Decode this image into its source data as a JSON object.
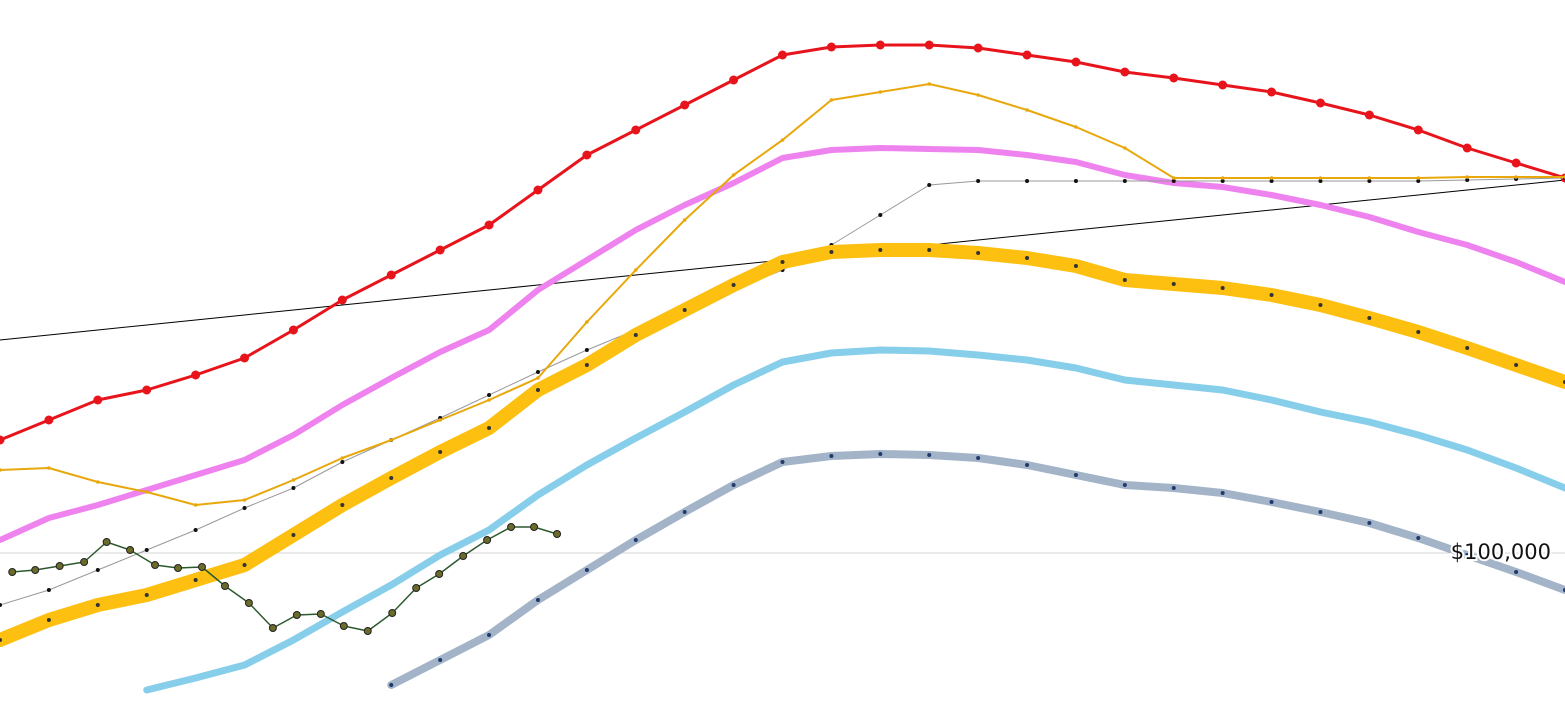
{
  "chart_data": {
    "type": "line",
    "x": [
      0,
      1,
      2,
      3,
      4,
      5,
      6,
      7,
      8,
      9,
      10,
      11,
      12,
      13,
      14,
      15,
      16,
      17,
      18,
      19,
      20,
      21,
      22,
      23,
      24,
      25,
      26,
      27,
      28,
      29,
      30,
      31,
      32
    ],
    "xlim": [
      0,
      32
    ],
    "ylim": [
      70200,
      210600
    ],
    "yticks": [
      {
        "value": 100000,
        "label": "$100,000"
      }
    ],
    "grid": true,
    "series": [
      {
        "color": "#000000",
        "width": 1,
        "marker": "none",
        "values": [
          142600,
          143600,
          144600,
          145600,
          146600,
          147600,
          148600,
          149600,
          150600,
          151600,
          152600,
          153600,
          154600,
          155600,
          156600,
          157600,
          158600,
          159600,
          160600,
          161600,
          162600,
          163600,
          164600,
          165600,
          166600,
          167600,
          168600,
          169600,
          170600,
          171600,
          172600,
          173600,
          174600
        ]
      },
      {
        "color": "#e8141c",
        "width": 3,
        "marker": "circle",
        "values": [
          122600,
          126600,
          130600,
          132600,
          135600,
          139000,
          144600,
          150600,
          155600,
          160600,
          165600,
          172600,
          179600,
          184600,
          189600,
          194600,
          199600,
          201200,
          201600,
          201600,
          201000,
          199600,
          198200,
          196200,
          195000,
          193600,
          192200,
          190000,
          187600,
          184600,
          181000,
          178000,
          175000
        ]
      },
      {
        "color": "#ee82ee",
        "width": 6,
        "marker": "none",
        "values": [
          102600,
          107000,
          109600,
          112600,
          115600,
          118600,
          123600,
          129600,
          135000,
          140200,
          144600,
          152600,
          158600,
          164600,
          169600,
          174000,
          179000,
          180600,
          181000,
          180800,
          180600,
          179600,
          178200,
          175600,
          174000,
          173200,
          171600,
          169600,
          167200,
          164200,
          161600,
          158200,
          154200
        ]
      },
      {
        "color": "#999999",
        "width": 1,
        "marker": "dot",
        "values": [
          89600,
          92600,
          96600,
          100600,
          104600,
          109000,
          113000,
          118200,
          122600,
          127000,
          131600,
          136200,
          140600,
          144600,
          148600,
          152600,
          156600,
          161600,
          167600,
          173600,
          174400,
          174400,
          174400,
          174400,
          174400,
          174400,
          174400,
          174400,
          174400,
          174400,
          174600,
          174800,
          175000
        ]
      },
      {
        "color": "#fdbf10",
        "width": 14,
        "marker": "dot",
        "values": [
          82600,
          86600,
          89600,
          91600,
          94600,
          97600,
          103600,
          109600,
          115000,
          120200,
          125000,
          132600,
          137600,
          143600,
          148600,
          153600,
          158200,
          160200,
          160600,
          160600,
          160000,
          159000,
          157400,
          154600,
          153800,
          153000,
          151600,
          149600,
          147000,
          144200,
          141000,
          137600,
          134200
        ]
      },
      {
        "color": "#87ceeb",
        "width": 7,
        "marker": "none",
        "values": [
          null,
          null,
          null,
          72600,
          75000,
          77600,
          82600,
          88200,
          93600,
          99600,
          104600,
          111600,
          117600,
          123000,
          128200,
          133600,
          138200,
          140000,
          140600,
          140400,
          139600,
          138600,
          137000,
          134600,
          133600,
          132600,
          130600,
          128200,
          126200,
          123600,
          120600,
          117000,
          113000
        ]
      },
      {
        "color": "#a3b4c8",
        "width": 8,
        "marker": "dot",
        "values": [
          null,
          null,
          null,
          null,
          null,
          null,
          null,
          null,
          73600,
          78600,
          83600,
          90600,
          96600,
          102600,
          108200,
          113600,
          118200,
          119400,
          119800,
          119600,
          119000,
          117600,
          115600,
          113600,
          113000,
          112000,
          110200,
          108200,
          106000,
          103000,
          99600,
          96200,
          92600
        ]
      },
      {
        "color": "#e8a80c",
        "width": 2,
        "marker": "dot",
        "values": [
          116600,
          117000,
          114200,
          112200,
          109600,
          110600,
          114600,
          119000,
          122600,
          126600,
          130600,
          135000,
          146200,
          156600,
          166600,
          175600,
          182600,
          190600,
          192200,
          193800,
          191600,
          188600,
          185200,
          181000,
          175000,
          175000,
          175000,
          175000,
          175000,
          175000,
          175200,
          175200,
          175200
        ]
      },
      {
        "color": "#2d5a2d",
        "width": 1.5,
        "marker": "circle",
        "x": [
          0.25,
          0.72,
          1.22,
          1.72,
          2.18,
          2.66,
          3.17,
          3.64,
          4.13,
          4.6,
          5.09,
          5.58,
          6.07,
          6.56,
          7.03,
          7.52,
          8.02,
          8.51,
          8.98,
          9.47,
          9.96,
          10.45,
          10.92,
          11.39
        ],
        "values": [
          96200,
          96600,
          97400,
          98200,
          102200,
          100600,
          97600,
          97000,
          97200,
          93400,
          90000,
          85000,
          87600,
          87800,
          85400,
          84400,
          88000,
          93000,
          95800,
          99400,
          102600,
          105200,
          105200,
          103800
        ]
      }
    ]
  }
}
